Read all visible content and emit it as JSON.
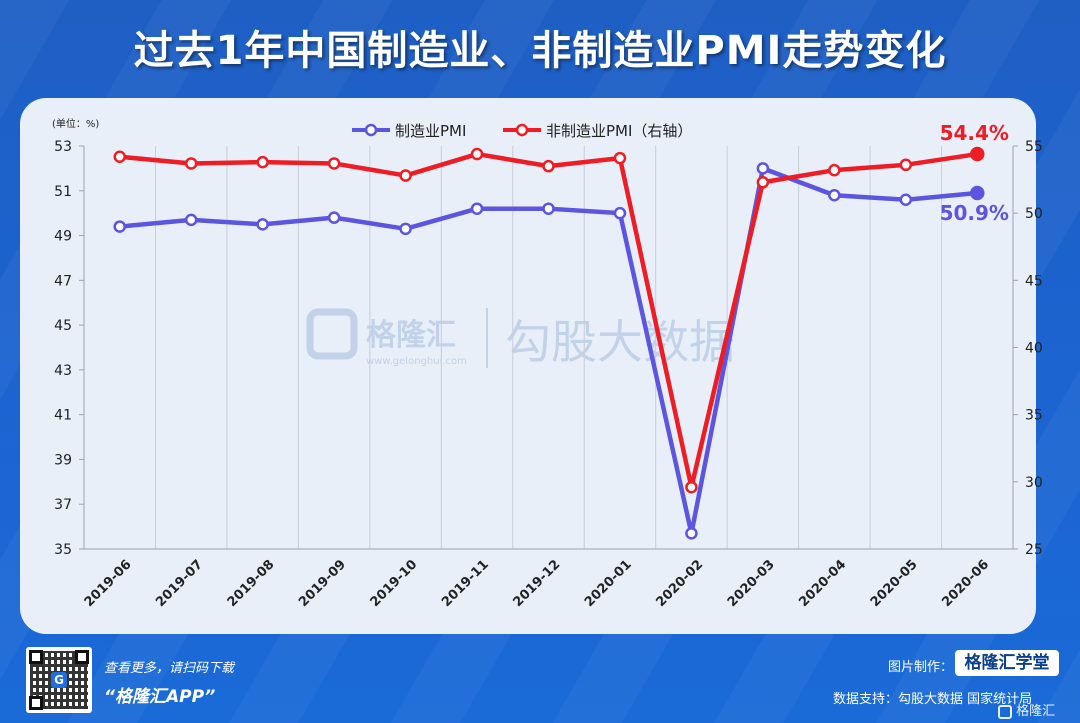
{
  "title": "过去1年中国制造业、非制造业PMI走势变化",
  "chart_data": {
    "type": "line",
    "unit_label": "(单位：%)",
    "categories": [
      "2019-06",
      "2019-07",
      "2019-08",
      "2019-09",
      "2019-10",
      "2019-11",
      "2019-12",
      "2020-01",
      "2020-02",
      "2020-03",
      "2020-04",
      "2020-05",
      "2020-06"
    ],
    "series": [
      {
        "name": "制造业PMI",
        "axis": "left",
        "color": "#5b55e0",
        "values": [
          49.4,
          49.7,
          49.5,
          49.8,
          49.3,
          50.2,
          50.2,
          50.0,
          35.7,
          52.0,
          50.8,
          50.6,
          50.9
        ]
      },
      {
        "name": "非制造业PMI（右轴）",
        "axis": "right",
        "color": "#ee1c24",
        "values": [
          54.2,
          53.7,
          53.8,
          53.7,
          52.8,
          54.4,
          53.5,
          54.1,
          29.6,
          52.3,
          53.2,
          53.6,
          54.4
        ]
      }
    ],
    "y_left": {
      "min": 35,
      "max": 53,
      "ticks": [
        35,
        37,
        39,
        41,
        43,
        45,
        47,
        49,
        51,
        53
      ]
    },
    "y_right": {
      "min": 25,
      "max": 55,
      "ticks": [
        25,
        30,
        35,
        40,
        45,
        50,
        55
      ]
    },
    "annotations": {
      "left_last": "50.9%",
      "right_last": "54.4%"
    },
    "grid": "vertical",
    "legend_position": "top-center"
  },
  "watermark": {
    "brand": "格隆汇",
    "domain": "www.gelonghui.com",
    "text": "勾股大数据"
  },
  "footer": {
    "scan_text": "查看更多，请扫码下载",
    "app_name": "“格隆汇APP”",
    "made_by_label": "图片制作：",
    "made_by_brand": "格隆汇学堂",
    "source": "数据支持：勾股大数据  国家统计局",
    "corner_logo": "格隆汇"
  },
  "colors": {
    "background": "#1c63cf",
    "panel": "#e9eff8",
    "manufacturing": "#5b55e0",
    "non_manufacturing": "#ee1c24"
  }
}
